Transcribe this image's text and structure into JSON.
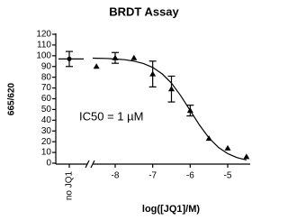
{
  "chart_data": {
    "type": "dose_response",
    "title": "BRDT Assay",
    "y_label": "665/620",
    "x_label": "log([JQ1]/M)",
    "annotation": "IC50 = 1 µM",
    "color": "#000000",
    "control": {
      "label": "no JQ1",
      "value": 97,
      "error": 7
    },
    "points": {
      "x": [
        -8.5,
        -8,
        -7.5,
        -7,
        -6.5,
        -6,
        -5.5,
        -5,
        -4.5
      ],
      "values": [
        90,
        98,
        98,
        83,
        69,
        49,
        23,
        14,
        6
      ],
      "errors": [
        null,
        5,
        null,
        12,
        12,
        5,
        null,
        null,
        null
      ]
    },
    "fit": {
      "x": [
        -8.6,
        -8.5,
        -8.25,
        -8,
        -7.75,
        -7.5,
        -7.25,
        -7,
        -6.75,
        -6.5,
        -6.25,
        -6,
        -5.75,
        -5.5,
        -5.25,
        -5,
        -4.75,
        -4.5
      ],
      "values": [
        97.8,
        97.7,
        97.5,
        97.0,
        96.3,
        95.0,
        92.8,
        89.1,
        83.2,
        74.5,
        62.7,
        49,
        35.3,
        23.5,
        14.8,
        8.9,
        5.2,
        3.0
      ]
    },
    "xlim": [
      -8.6,
      -4.4
    ],
    "xticks": [
      -8,
      -7,
      -6,
      -5
    ],
    "ylim": [
      0,
      120
    ],
    "yticks": [
      0,
      10,
      20,
      30,
      40,
      50,
      60,
      70,
      80,
      90,
      100,
      110,
      120
    ]
  }
}
